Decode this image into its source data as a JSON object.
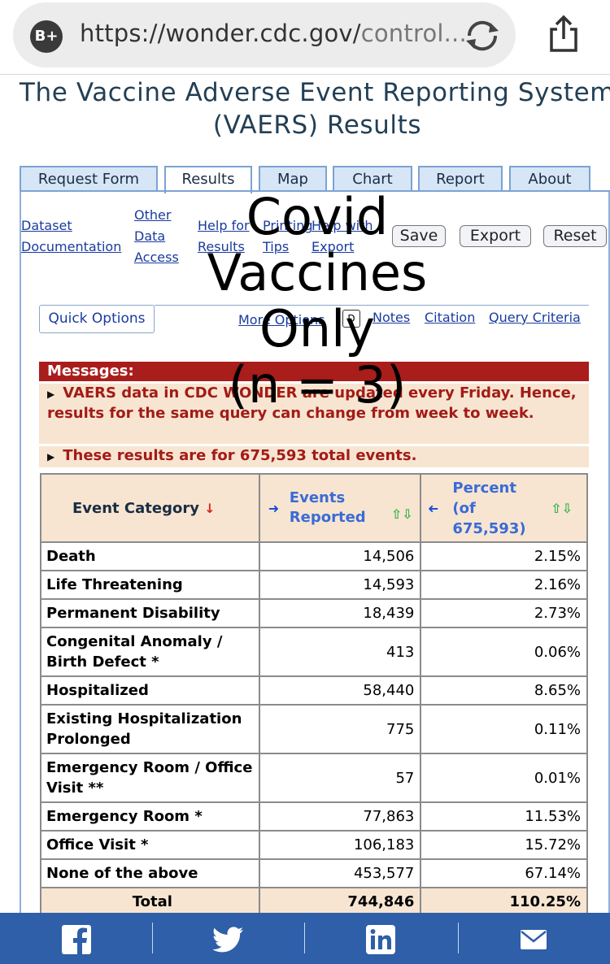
{
  "browser": {
    "url_main": "https://wonder.cdc.gov/",
    "url_tail": "control...",
    "badge": "B+"
  },
  "page": {
    "title_line1": "The Vaccine Adverse Event Reporting System",
    "title_line2": "(VAERS) Results"
  },
  "tabs": [
    {
      "label": "Request Form"
    },
    {
      "label": "Results"
    },
    {
      "label": "Map"
    },
    {
      "label": "Chart"
    },
    {
      "label": "Report"
    },
    {
      "label": "About"
    }
  ],
  "toolbar": {
    "dataset_doc_1": "Dataset",
    "dataset_doc_2": "Documentation",
    "other_1": "Other",
    "other_2": "Data",
    "other_3": "Access",
    "help_1": "Help for",
    "help_2": "Results",
    "print_1": "Printing",
    "print_2": "Tips",
    "helpwith_1": "Help with",
    "helpwith_2": "Export",
    "save_label": "Save",
    "export_label": "Export",
    "reset_label": "Reset"
  },
  "subnav": {
    "quick_options": "Quick Options",
    "more_options": "More Options",
    "notes": "Notes",
    "citation": "Citation",
    "query_criteria": "Query Criteria"
  },
  "messages": {
    "header": "Messages:",
    "msg1": "VAERS data in CDC WONDER are updated every Friday. Hence, results for the same query can change from week to week.",
    "msg2": "These results are for 675,593 total events."
  },
  "table": {
    "col1": "Event Category",
    "col2_line1": "Events",
    "col2_line2": "Reported",
    "col3_line1": "Percent",
    "col3_line2": "(of",
    "col3_line3": "675,593)",
    "rows": [
      {
        "category": "Death",
        "events": "14,506",
        "percent": "2.15%"
      },
      {
        "category": "Life Threatening",
        "events": "14,593",
        "percent": "2.16%"
      },
      {
        "category": "Permanent Disability",
        "events": "18,439",
        "percent": "2.73%"
      },
      {
        "category": "Congenital Anomaly / Birth Defect *",
        "events": "413",
        "percent": "0.06%"
      },
      {
        "category": "Hospitalized",
        "events": "58,440",
        "percent": "8.65%"
      },
      {
        "category": "Existing Hospitalization Prolonged",
        "events": "775",
        "percent": "0.11%"
      },
      {
        "category": "Emergency Room / Office Visit **",
        "events": "57",
        "percent": "0.01%"
      },
      {
        "category": "Emergency Room *",
        "events": "77,863",
        "percent": "11.53%"
      },
      {
        "category": "Office Visit *",
        "events": "106,183",
        "percent": "15.72%"
      },
      {
        "category": "None of the above",
        "events": "453,577",
        "percent": "67.14%"
      }
    ],
    "total": {
      "category": "Total",
      "events": "744,846",
      "percent": "110.25%"
    }
  },
  "overlay": {
    "line1": "Covid",
    "line2": "Vaccines",
    "line3": "Only",
    "line4": "(n = 3)"
  },
  "share": [
    "facebook-icon",
    "twitter-icon",
    "linkedin-icon",
    "email-icon"
  ],
  "colors": {
    "brand_blue": "#2e5fa8",
    "message_red": "#a91d1b",
    "header_tan": "#f7e5d2"
  }
}
